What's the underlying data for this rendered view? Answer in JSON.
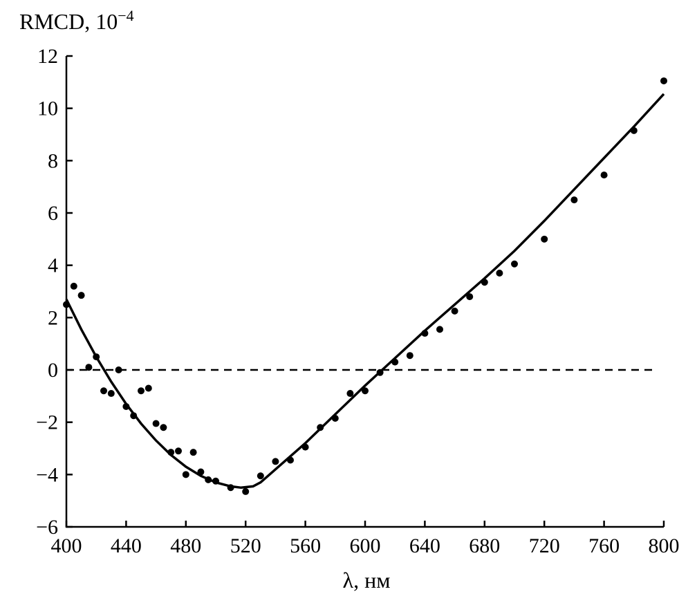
{
  "chart_data": {
    "type": "scatter",
    "ylabel": "RMCD, 10",
    "ylabel_exponent": "−4",
    "xlabel": "λ, нм",
    "xlim": [
      400,
      800
    ],
    "ylim": [
      -6,
      12
    ],
    "xticks": [
      400,
      440,
      480,
      520,
      560,
      600,
      640,
      680,
      720,
      760,
      800
    ],
    "yticks": [
      -6,
      -4,
      -2,
      0,
      2,
      4,
      6,
      8,
      10,
      12
    ],
    "ytick_labels": [
      "−6",
      "−4",
      "−2",
      "0",
      "2",
      "4",
      "6",
      "8",
      "10",
      "12"
    ],
    "grid": false,
    "reference_line": {
      "y": 0,
      "style": "dashed"
    },
    "series": [
      {
        "style": "points",
        "x": [
          400,
          405,
          410,
          415,
          420,
          425,
          430,
          435,
          440,
          445,
          450,
          455,
          460,
          465,
          470,
          475,
          480,
          485,
          490,
          495,
          500,
          510,
          520,
          530,
          540,
          550,
          560,
          570,
          580,
          590,
          600,
          610,
          620,
          630,
          640,
          650,
          660,
          670,
          680,
          690,
          700,
          720,
          740,
          760,
          780,
          800
        ],
        "y": [
          2.5,
          3.2,
          2.85,
          0.1,
          0.5,
          -0.8,
          -0.9,
          0,
          -1.4,
          -1.75,
          -0.8,
          -0.7,
          -2.05,
          -2.2,
          -3.15,
          -3.1,
          -4.0,
          -3.15,
          -3.9,
          -4.2,
          -4.25,
          -4.5,
          -4.65,
          -4.05,
          -3.5,
          -3.45,
          -2.95,
          -2.2,
          -1.85,
          -0.9,
          -0.8,
          -0.1,
          0.3,
          0.55,
          1.4,
          1.55,
          2.25,
          2.8,
          3.35,
          3.7,
          4.05,
          5.0,
          6.5,
          7.45,
          9.15,
          11.05
        ]
      },
      {
        "style": "line",
        "x": [
          400,
          410,
          420,
          430,
          440,
          450,
          460,
          470,
          480,
          490,
          500,
          510,
          517,
          525,
          530,
          540,
          560,
          580,
          600,
          620,
          640,
          660,
          680,
          700,
          720,
          740,
          760,
          780,
          800
        ],
        "y": [
          2.7,
          1.55,
          0.5,
          -0.45,
          -1.3,
          -2.05,
          -2.7,
          -3.25,
          -3.7,
          -4.05,
          -4.3,
          -4.45,
          -4.5,
          -4.45,
          -4.3,
          -3.8,
          -2.8,
          -1.7,
          -0.6,
          0.45,
          1.5,
          2.5,
          3.5,
          4.55,
          5.7,
          6.9,
          8.1,
          9.3,
          10.55
        ]
      }
    ]
  }
}
